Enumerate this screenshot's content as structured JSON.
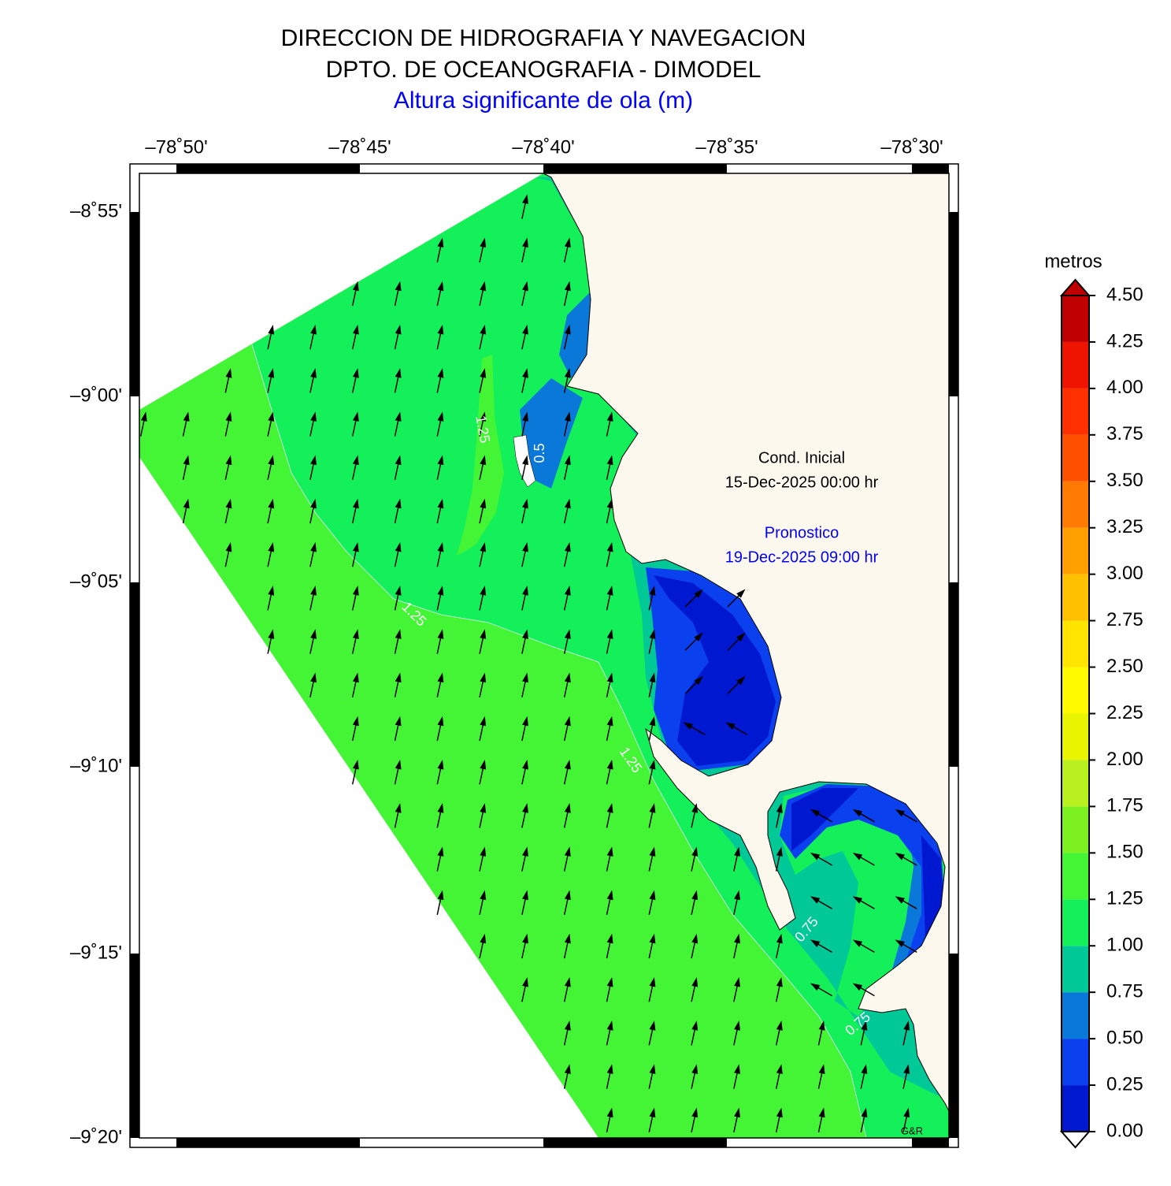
{
  "header": {
    "title": "DIRECCION DE HIDROGRAFIA Y NAVEGACION",
    "subtitle": "DPTO. DE OCEANOGRAFIA - DIMODEL",
    "variable": "Altura significante de ola (m)"
  },
  "map": {
    "lon_ticks": [
      "–78˚50'",
      "–78˚45'",
      "–78˚40'",
      "–78˚35'",
      "–78˚30'"
    ],
    "lat_ticks": [
      "–8˚55'",
      "–9˚00'",
      "–9˚05'",
      "–9˚10'",
      "–9˚15'",
      "–9˚20'"
    ],
    "initial_label": "Cond. Inicial",
    "initial_time": "15-Dec-2025 00:00 hr",
    "forecast_label": "Pronostico",
    "forecast_time": "19-Dec-2025 09:00 hr",
    "credit": "G&R",
    "contour_labels": [
      "1.25",
      "1.25",
      "1.25",
      "0.5",
      "0.75",
      "0.75"
    ]
  },
  "colorbar": {
    "title": "metros",
    "ticks": [
      {
        "value": 0,
        "label": "0.00"
      },
      {
        "value": 0.25,
        "label": "0.25"
      },
      {
        "value": 0.5,
        "label": "0.50"
      },
      {
        "value": 0.75,
        "label": "0.75"
      },
      {
        "value": 1,
        "label": "1.00"
      },
      {
        "value": 1.25,
        "label": "1.25"
      },
      {
        "value": 1.5,
        "label": "1.50"
      },
      {
        "value": 1.75,
        "label": "1.75"
      },
      {
        "value": 2,
        "label": "2.00"
      },
      {
        "value": 2.25,
        "label": "2.25"
      },
      {
        "value": 2.5,
        "label": "2.50"
      },
      {
        "value": 2.75,
        "label": "2.75"
      },
      {
        "value": 3,
        "label": "3.00"
      },
      {
        "value": 3.25,
        "label": "3.25"
      },
      {
        "value": 3.5,
        "label": "3.50"
      },
      {
        "value": 3.75,
        "label": "3.75"
      },
      {
        "value": 4,
        "label": "4.00"
      },
      {
        "value": 4.25,
        "label": "4.25"
      },
      {
        "value": 4.5,
        "label": "4.50"
      }
    ],
    "colors": [
      "#0018d0",
      "#0a40ee",
      "#0a78d8",
      "#00c896",
      "#14f05a",
      "#44f535",
      "#7cf020",
      "#b8f020",
      "#e8f400",
      "#fffa00",
      "#ffe400",
      "#ffc000",
      "#ffa000",
      "#ff7a00",
      "#ff5000",
      "#ff3000",
      "#ee1400",
      "#c00000"
    ]
  }
}
